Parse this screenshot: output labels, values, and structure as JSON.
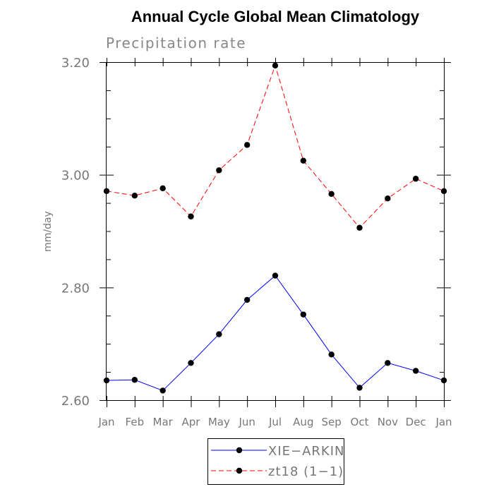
{
  "chart_data": {
    "type": "line",
    "title": "Annual Cycle Global Mean Climatology",
    "subtitle": "Precipitation rate",
    "xlabel": "",
    "ylabel": "mm/day",
    "categories": [
      "Jan",
      "Feb",
      "Mar",
      "Apr",
      "May",
      "Jun",
      "Jul",
      "Aug",
      "Sep",
      "Oct",
      "Nov",
      "Dec",
      "Jan"
    ],
    "ylim": [
      2.6,
      3.2
    ],
    "yticks": [
      2.6,
      2.8,
      3.0,
      3.2
    ],
    "ytick_labels": [
      "2.60",
      "2.80",
      "3.00",
      "3.20"
    ],
    "grid": false,
    "legend_position": "bottom-center",
    "series": [
      {
        "name": "XIE−ARKIN",
        "color": "#0000ff",
        "dash": "solid",
        "marker": "circle",
        "values": [
          2.635,
          2.636,
          2.617,
          2.666,
          2.717,
          2.778,
          2.821,
          2.752,
          2.681,
          2.622,
          2.666,
          2.652,
          2.635
        ]
      },
      {
        "name": "zt18 (1−1)",
        "color": "#ff0000",
        "dash": "dashed",
        "marker": "circle",
        "values": [
          2.971,
          2.963,
          2.976,
          2.926,
          3.008,
          3.053,
          3.194,
          3.025,
          2.966,
          2.906,
          2.958,
          2.993,
          2.971
        ]
      }
    ]
  }
}
